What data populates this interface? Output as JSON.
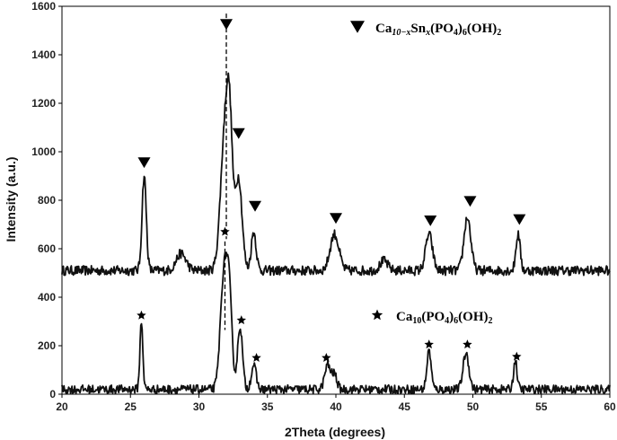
{
  "chart_data": {
    "type": "line",
    "xlabel": "2Theta (degrees)",
    "ylabel": "Intensity (a.u.)",
    "xlim": [
      20,
      60
    ],
    "ylim": [
      0,
      1600
    ],
    "xticks": [
      20,
      25,
      30,
      35,
      40,
      45,
      50,
      55,
      60
    ],
    "yticks": [
      0,
      200,
      400,
      600,
      800,
      1000,
      1200,
      1400,
      1600
    ],
    "grid": false,
    "legend": [
      {
        "marker": "triangle-down",
        "text": "Ca10−xSnx(PO4)6(OH)2",
        "parts": [
          [
            "Ca",
            ""
          ],
          [
            "10−x",
            "sub"
          ],
          [
            "Sn",
            ""
          ],
          [
            "x",
            "sub"
          ],
          [
            "(PO",
            ""
          ],
          [
            "4",
            "sub"
          ],
          [
            ")",
            ""
          ],
          [
            "6",
            "sub"
          ],
          [
            "(OH)",
            ""
          ],
          [
            "2",
            "sub"
          ]
        ],
        "position": "top-right"
      },
      {
        "marker": "star",
        "text": "Ca10(PO4)6(OH)2",
        "parts": [
          [
            "Ca",
            ""
          ],
          [
            "10",
            "sub"
          ],
          [
            "(PO",
            ""
          ],
          [
            "4",
            "sub"
          ],
          [
            ")",
            ""
          ],
          [
            "6",
            "sub"
          ],
          [
            "(OH)",
            ""
          ],
          [
            "2",
            "sub"
          ]
        ],
        "position": "middle-right"
      }
    ],
    "series": [
      {
        "baseline": 510,
        "noise": 20,
        "peaks": [
          {
            "x": 26.0,
            "h": 390,
            "w": 0.22
          },
          {
            "x": 28.7,
            "h": 70,
            "w": 0.5
          },
          {
            "x": 31.9,
            "h": 560,
            "w": 0.45
          },
          {
            "x": 32.25,
            "h": 430,
            "w": 0.3
          },
          {
            "x": 32.9,
            "h": 380,
            "w": 0.35
          },
          {
            "x": 34.0,
            "h": 160,
            "w": 0.25
          },
          {
            "x": 39.9,
            "h": 150,
            "w": 0.45
          },
          {
            "x": 43.5,
            "h": 40,
            "w": 0.4
          },
          {
            "x": 46.8,
            "h": 150,
            "w": 0.35
          },
          {
            "x": 49.6,
            "h": 220,
            "w": 0.35
          },
          {
            "x": 53.3,
            "h": 150,
            "w": 0.22
          }
        ],
        "markers": [
          26.0,
          32.0,
          32.9,
          34.1,
          40.0,
          46.9,
          49.8,
          53.4
        ],
        "marker_y": [
          955,
          1525,
          1075,
          775,
          725,
          715,
          795,
          720
        ]
      },
      {
        "baseline": 20,
        "noise": 18,
        "peaks": [
          {
            "x": 25.8,
            "h": 280,
            "w": 0.15
          },
          {
            "x": 31.8,
            "h": 440,
            "w": 0.35
          },
          {
            "x": 32.2,
            "h": 380,
            "w": 0.3
          },
          {
            "x": 33.0,
            "h": 260,
            "w": 0.25
          },
          {
            "x": 34.0,
            "h": 100,
            "w": 0.25
          },
          {
            "x": 39.4,
            "h": 100,
            "w": 0.3
          },
          {
            "x": 39.9,
            "h": 60,
            "w": 0.25
          },
          {
            "x": 46.8,
            "h": 160,
            "w": 0.22
          },
          {
            "x": 49.5,
            "h": 150,
            "w": 0.3
          },
          {
            "x": 53.1,
            "h": 120,
            "w": 0.18
          }
        ],
        "markers": [
          25.8,
          31.9,
          33.1,
          34.2,
          39.3,
          46.8,
          49.6,
          53.2
        ],
        "marker_y": [
          325,
          670,
          305,
          150,
          150,
          205,
          205,
          155
        ]
      }
    ],
    "dashed_lines": [
      {
        "x": 32.0,
        "y": [
          1570,
          640
        ]
      },
      {
        "x": 31.9,
        "y": [
          630,
          265
        ]
      }
    ]
  }
}
